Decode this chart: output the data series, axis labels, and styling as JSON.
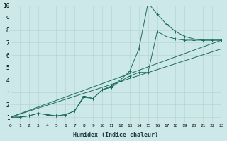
{
  "xlabel": "Humidex (Indice chaleur)",
  "xlim": [
    0,
    23
  ],
  "ylim": [
    0.5,
    10
  ],
  "yticks": [
    1,
    2,
    3,
    4,
    5,
    6,
    7,
    8,
    9,
    10
  ],
  "xticks": [
    0,
    1,
    2,
    3,
    4,
    5,
    6,
    7,
    8,
    9,
    10,
    11,
    12,
    13,
    14,
    15,
    16,
    17,
    18,
    19,
    20,
    21,
    22,
    23
  ],
  "bg_color": "#cde8e8",
  "grid_color": "#b8d4d4",
  "line_color": "#1a6b5a",
  "line1_x": [
    0,
    1,
    2,
    3,
    4,
    5,
    6,
    7,
    8,
    9,
    10,
    11,
    12,
    13,
    14,
    15,
    16,
    17,
    18,
    19,
    20,
    21,
    22,
    23
  ],
  "line1_y": [
    1.0,
    1.0,
    1.1,
    1.3,
    1.2,
    1.1,
    1.2,
    1.5,
    2.7,
    2.5,
    3.2,
    3.5,
    4.0,
    4.7,
    6.5,
    10.2,
    9.3,
    8.5,
    7.9,
    7.5,
    7.3,
    7.2,
    7.2,
    7.2
  ],
  "line2_x": [
    0,
    1,
    2,
    3,
    4,
    5,
    6,
    7,
    8,
    9,
    10,
    11,
    12,
    13,
    14,
    15,
    16,
    17,
    18,
    19,
    20,
    21,
    22,
    23
  ],
  "line2_y": [
    1.0,
    1.0,
    1.1,
    1.3,
    1.2,
    1.1,
    1.2,
    1.5,
    2.6,
    2.5,
    3.2,
    3.4,
    3.9,
    4.3,
    4.6,
    4.6,
    7.9,
    7.5,
    7.3,
    7.2,
    7.2,
    7.2,
    7.2,
    7.2
  ],
  "line3_x": [
    0,
    23
  ],
  "line3_y": [
    1.0,
    6.5
  ],
  "line4_x": [
    0,
    23
  ],
  "line4_y": [
    1.0,
    7.2
  ]
}
